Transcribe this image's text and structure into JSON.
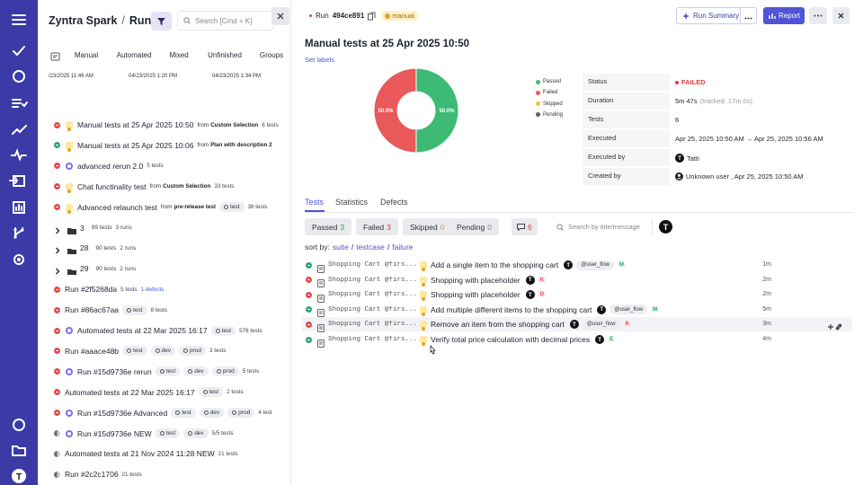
{
  "sidebar": {
    "avatar": "T"
  },
  "left": {
    "org": "Zyntra Spark",
    "separator": "/",
    "section": "Runs",
    "search_placeholder": "Search [Cmd + K]",
    "tabs": [
      "Manual",
      "Automated",
      "Mixed",
      "Unfinished",
      "Groups"
    ],
    "dates": [
      "/23/2025 11:46 AM",
      "04/23/2025 1:20 PM",
      "04/23/2025 1:34 PM"
    ],
    "items": [
      {
        "kind": "run",
        "status": "failed",
        "mode": "manual",
        "title": "Manual tests at 25 Apr 2025 10:50",
        "source": [
          "from",
          "Custom Selection"
        ],
        "count": "6 tests"
      },
      {
        "kind": "run",
        "status": "passed",
        "mode": "manual",
        "title": "Manual tests at 25 Apr 2025 10:06",
        "source": [
          "from",
          "Plan with description 2"
        ]
      },
      {
        "kind": "run",
        "status": "failed",
        "mode": "mixed",
        "title": "advanced rerun 2.0",
        "count": "5 tests"
      },
      {
        "kind": "run",
        "status": "failed",
        "mode": "manual",
        "title": "Chat functinality test",
        "source": [
          "from",
          "Custom Selection"
        ],
        "count": "33 tests"
      },
      {
        "kind": "run",
        "status": "failed",
        "mode": "manual",
        "title": "Advanced relaunch test",
        "source": [
          "from",
          "pre-release test"
        ],
        "tags": [
          "test"
        ],
        "count": "36 tests"
      },
      {
        "kind": "group",
        "name": "3",
        "tests": "99 tests",
        "runs": "3 runs"
      },
      {
        "kind": "group",
        "name": "28",
        "tests": "90 tests",
        "runs": "2 runs"
      },
      {
        "kind": "group",
        "name": "29",
        "tests": "90 tests",
        "runs": "2 runs"
      },
      {
        "kind": "run",
        "status": "failed",
        "mode": "none",
        "title": "Run #2f5268da",
        "count": "5 tests",
        "defects": "1 defects"
      },
      {
        "kind": "run",
        "status": "failed",
        "mode": "none",
        "title": "Run #86ac67aa",
        "tags": [
          "test"
        ],
        "count": "8 tests"
      },
      {
        "kind": "run",
        "status": "failed",
        "mode": "mixed",
        "title": "Automated tests at 22 Mar 2025 16:17",
        "tags": [
          "test"
        ],
        "count": "576 tests"
      },
      {
        "kind": "run",
        "status": "failed",
        "mode": "none",
        "title": "Run #aaace48b",
        "tags": [
          "test",
          "dev",
          "prod"
        ],
        "count": "3 tests"
      },
      {
        "kind": "run",
        "status": "failed",
        "mode": "mixed",
        "title": "Run #15d9736e rerun",
        "tags": [
          "test",
          "dev",
          "prod"
        ],
        "count": "5 tests"
      },
      {
        "kind": "run",
        "status": "failed",
        "mode": "none",
        "title": "Automated tests at 22 Mar 2025 16:17",
        "tags": [
          "test"
        ],
        "count": "2 tests"
      },
      {
        "kind": "run",
        "status": "failed",
        "mode": "mixed",
        "title": "Run #15d9736e Advanced",
        "tags": [
          "test",
          "dev",
          "prod"
        ],
        "count": "4 test"
      },
      {
        "kind": "run",
        "status": "unknown",
        "mode": "mixed",
        "title": "Run #15d9736e NEW",
        "tags": [
          "test",
          "dev"
        ],
        "count": "5/5 tests"
      },
      {
        "kind": "run",
        "status": "unknown",
        "mode": "none",
        "title": "Automated tests at 21 Nov 2024 11:28 NEW",
        "count": "21 tests"
      },
      {
        "kind": "run",
        "status": "unknown",
        "mode": "none",
        "title": "Run #2c2c1706",
        "count": "21 tests"
      }
    ]
  },
  "run": {
    "prefix": "Run",
    "id": "494ce891",
    "badge": "manual",
    "buttons": [
      "Run Summary",
      "Report"
    ],
    "title": "Manual tests at 25 Apr 2025 10:50",
    "set_labels": "Set labels",
    "pie": {
      "slices": [
        {
          "name": "Passed",
          "color": "#3dbb74",
          "value": 50,
          "label": "50.0%"
        },
        {
          "name": "Failed",
          "color": "#e9585b",
          "value": 50,
          "label": "50.0%"
        }
      ],
      "legend": [
        {
          "name": "Passed",
          "color": "#3dbb74"
        },
        {
          "name": "Failed",
          "color": "#e9585b"
        },
        {
          "name": "Skipped",
          "color": "#f2c23a"
        },
        {
          "name": "Pending",
          "color": "#5c5f73"
        }
      ]
    },
    "details": [
      {
        "label": "Status",
        "value": "FAILED",
        "icon": "dot",
        "color": "#e03b3b"
      },
      {
        "label": "Duration",
        "value": "5m 47s",
        "note": "(tracked: 17m 0s)"
      },
      {
        "label": "Tests",
        "value": "6"
      },
      {
        "label": "Executed",
        "value": "Apr 25, 2025 10:50 AM → Apr 25, 2025 10:56 AM"
      },
      {
        "label": "Executed by",
        "value": "Tatti",
        "icon": "avatar",
        "avatar": "T"
      },
      {
        "label": "Created by",
        "value": "Unknown user , Apr 25, 2025 10:50 AM",
        "icon": "user"
      }
    ],
    "tabs": [
      "Tests",
      "Statistics",
      "Defects"
    ],
    "chips": [
      {
        "label": "Passed",
        "count": 3,
        "color": "#2e9e5b"
      },
      {
        "label": "Failed",
        "count": 3,
        "color": "#e03b3b"
      },
      {
        "label": "Skipped",
        "count": 0,
        "color": "#e89a1c"
      },
      {
        "label": "Pending",
        "count": 0,
        "color": "#8a8d9c"
      }
    ],
    "comments": 6,
    "search_placeholder": "Search by title/message",
    "avatar": "T",
    "sort": {
      "label": "sort by:",
      "separator": "/",
      "options": [
        "suite",
        "testcase",
        "failure"
      ]
    },
    "tests": [
      {
        "status": "passed",
        "suite": "Shopping Cart @firs...",
        "title": "Add a single item to the shopping cart",
        "avatar": "T",
        "tag": "@user_flow",
        "letter": "M",
        "duration": "1m"
      },
      {
        "status": "failed",
        "suite": "Shopping Cart @firs...",
        "title": "Shopping with placeholder",
        "avatar": "T",
        "letter": "K",
        "duration": "2m"
      },
      {
        "status": "failed",
        "suite": "Shopping Cart @firs...",
        "title": "Shopping with placeholder",
        "avatar": "T",
        "letter": "D",
        "duration": "2m"
      },
      {
        "status": "passed",
        "suite": "Shopping Cart @firs...",
        "title": "Add multiple different items to the shopping cart",
        "avatar": "T",
        "tag": "@user_flow",
        "letter": "M",
        "duration": "5m"
      },
      {
        "status": "failed",
        "suite": "Shopping Cart @firs...",
        "title": "Remove an item from the shopping cart",
        "avatar": "T",
        "tag": "@user_flow",
        "letter": "K",
        "duration": "3m",
        "hovered": true
      },
      {
        "status": "passed",
        "suite": "Shopping Cart @firs...",
        "title": "Verify total price calculation with decimal prices",
        "avatar": "T",
        "letter": "E",
        "duration": "4m"
      }
    ]
  }
}
